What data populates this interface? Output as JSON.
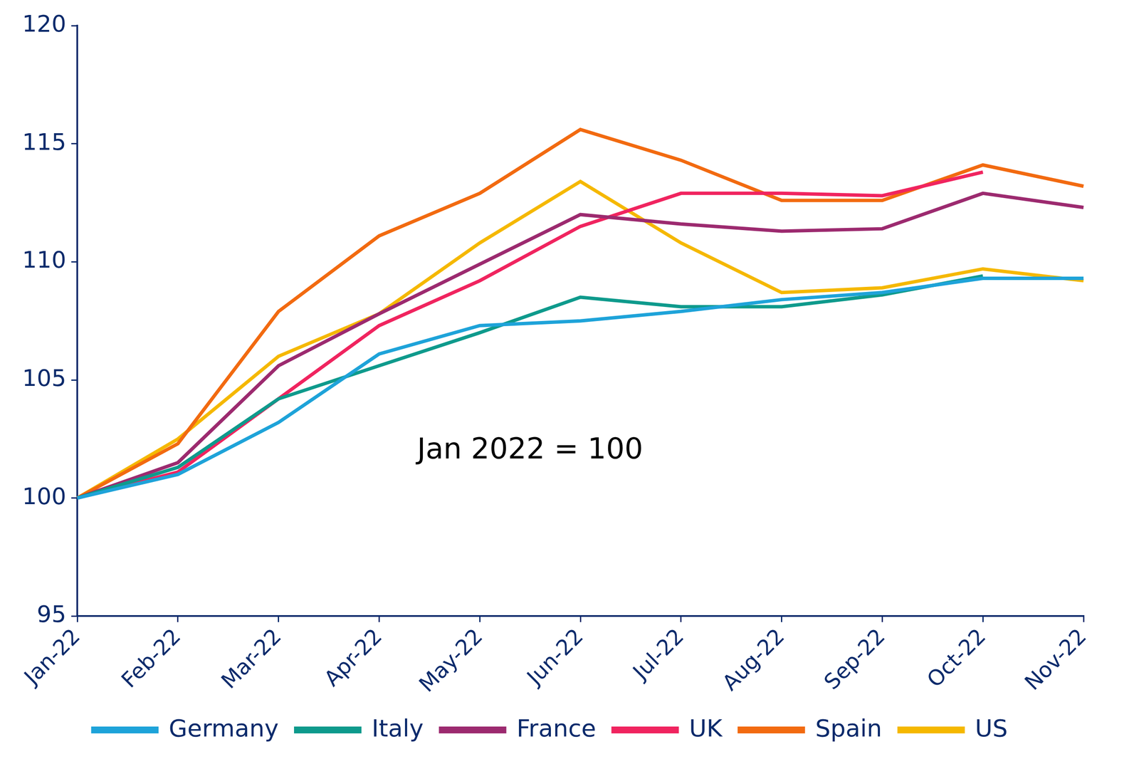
{
  "chart_data": {
    "type": "line",
    "categories": [
      "Jan-22",
      "Feb-22",
      "Mar-22",
      "Apr-22",
      "May-22",
      "Jun-22",
      "Jul-22",
      "Aug-22",
      "Sep-22",
      "Oct-22",
      "Nov-22"
    ],
    "series": [
      {
        "name": "Germany",
        "color": "#1ea3d9",
        "values": [
          100,
          101.0,
          103.2,
          106.1,
          107.3,
          107.5,
          107.9,
          108.4,
          108.7,
          109.3,
          109.3
        ]
      },
      {
        "name": "Italy",
        "color": "#0e9a8c",
        "values": [
          100,
          101.3,
          104.2,
          105.6,
          107.0,
          108.5,
          108.1,
          108.1,
          108.6,
          109.4,
          null
        ]
      },
      {
        "name": "France",
        "color": "#9c2a6f",
        "values": [
          100,
          101.5,
          105.6,
          107.8,
          109.9,
          112.0,
          111.6,
          111.3,
          111.4,
          112.9,
          112.3
        ]
      },
      {
        "name": "UK",
        "color": "#f0245f",
        "values": [
          100,
          101.1,
          104.2,
          107.3,
          109.2,
          111.5,
          112.9,
          112.9,
          112.8,
          113.8,
          null
        ]
      },
      {
        "name": "Spain",
        "color": "#f26a10",
        "values": [
          100,
          102.3,
          107.9,
          111.1,
          112.9,
          115.6,
          114.3,
          112.6,
          112.6,
          114.1,
          113.2
        ]
      },
      {
        "name": "US",
        "color": "#f5b800",
        "values": [
          100,
          102.5,
          106.0,
          107.8,
          110.8,
          113.4,
          110.8,
          108.7,
          108.9,
          109.7,
          109.2
        ]
      }
    ],
    "ylim": [
      95,
      120
    ],
    "yticks": [
      95,
      100,
      105,
      110,
      115,
      120
    ],
    "grid": false,
    "legend": "bottom",
    "annotations": [
      {
        "text": "Jan 2022 = 100"
      }
    ]
  }
}
